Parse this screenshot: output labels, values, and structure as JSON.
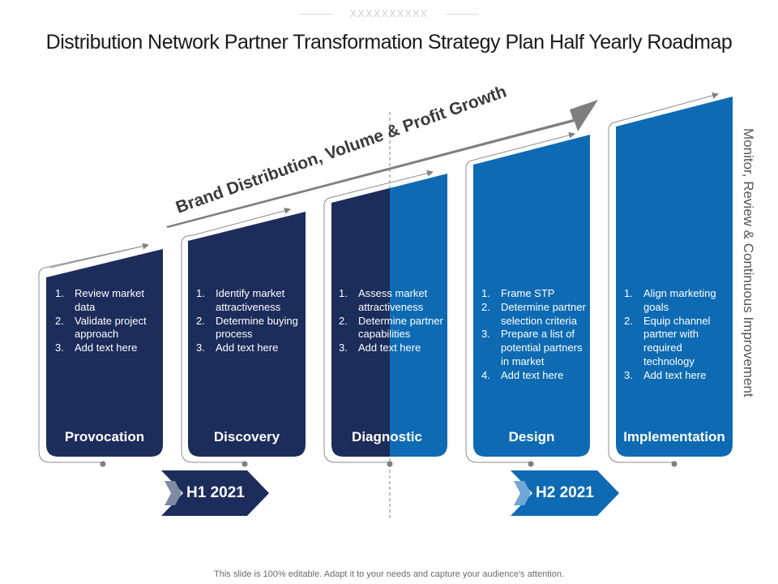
{
  "header": {
    "top_code": "XXXXXXXXXX",
    "title": "Distribution Network Partner Transformation Strategy Plan Half Yearly Roadmap"
  },
  "growth_arrow": {
    "label": "Brand Distribution, Volume & Profit Growth"
  },
  "side_label": "Monitor, Review & Continuous Improvement",
  "stages": [
    {
      "name": "Provocation",
      "color": "#1c2c5b",
      "items": [
        {
          "num": "1.",
          "text": "Review market data"
        },
        {
          "num": "2.",
          "text": "Validate project approach"
        },
        {
          "num": "3.",
          "text": "Add text here"
        }
      ]
    },
    {
      "name": "Discovery",
      "color": "#1c2c5b",
      "items": [
        {
          "num": "1.",
          "text": "Identify market attractiveness"
        },
        {
          "num": "2.",
          "text": "Determine buying process"
        },
        {
          "num": "3.",
          "text": "Add text here"
        }
      ]
    },
    {
      "name": "Diagnostic",
      "color": "#1c2c5b",
      "color_right": "#0e6bb3",
      "items": [
        {
          "num": "1.",
          "text": "Assess market attractiveness"
        },
        {
          "num": "2.",
          "text": "Determine partner capabilities"
        },
        {
          "num": "3.",
          "text": "Add text here"
        }
      ]
    },
    {
      "name": "Design",
      "color": "#0e6bb3",
      "items": [
        {
          "num": "1.",
          "text": "Frame STP"
        },
        {
          "num": "2.",
          "text": "Determine partner selection criteria"
        },
        {
          "num": "3.",
          "text": "Prepare a list of potential partners in market"
        },
        {
          "num": "4.",
          "text": "Add text here"
        }
      ]
    },
    {
      "name": "Implementation",
      "color": "#0e6bb3",
      "items": [
        {
          "num": "1.",
          "text": "Align marketing goals"
        },
        {
          "num": "2.",
          "text": "Equip channel partner with required technology"
        },
        {
          "num": "3.",
          "text": "Add text here"
        }
      ]
    }
  ],
  "halves": [
    {
      "label": "H1 2021",
      "color": "#1c2c5b"
    },
    {
      "label": "H2 2021",
      "color": "#0e6bb3"
    }
  ],
  "footer": "This slide is 100% editable. Adapt it to your needs and capture your audience's attention."
}
